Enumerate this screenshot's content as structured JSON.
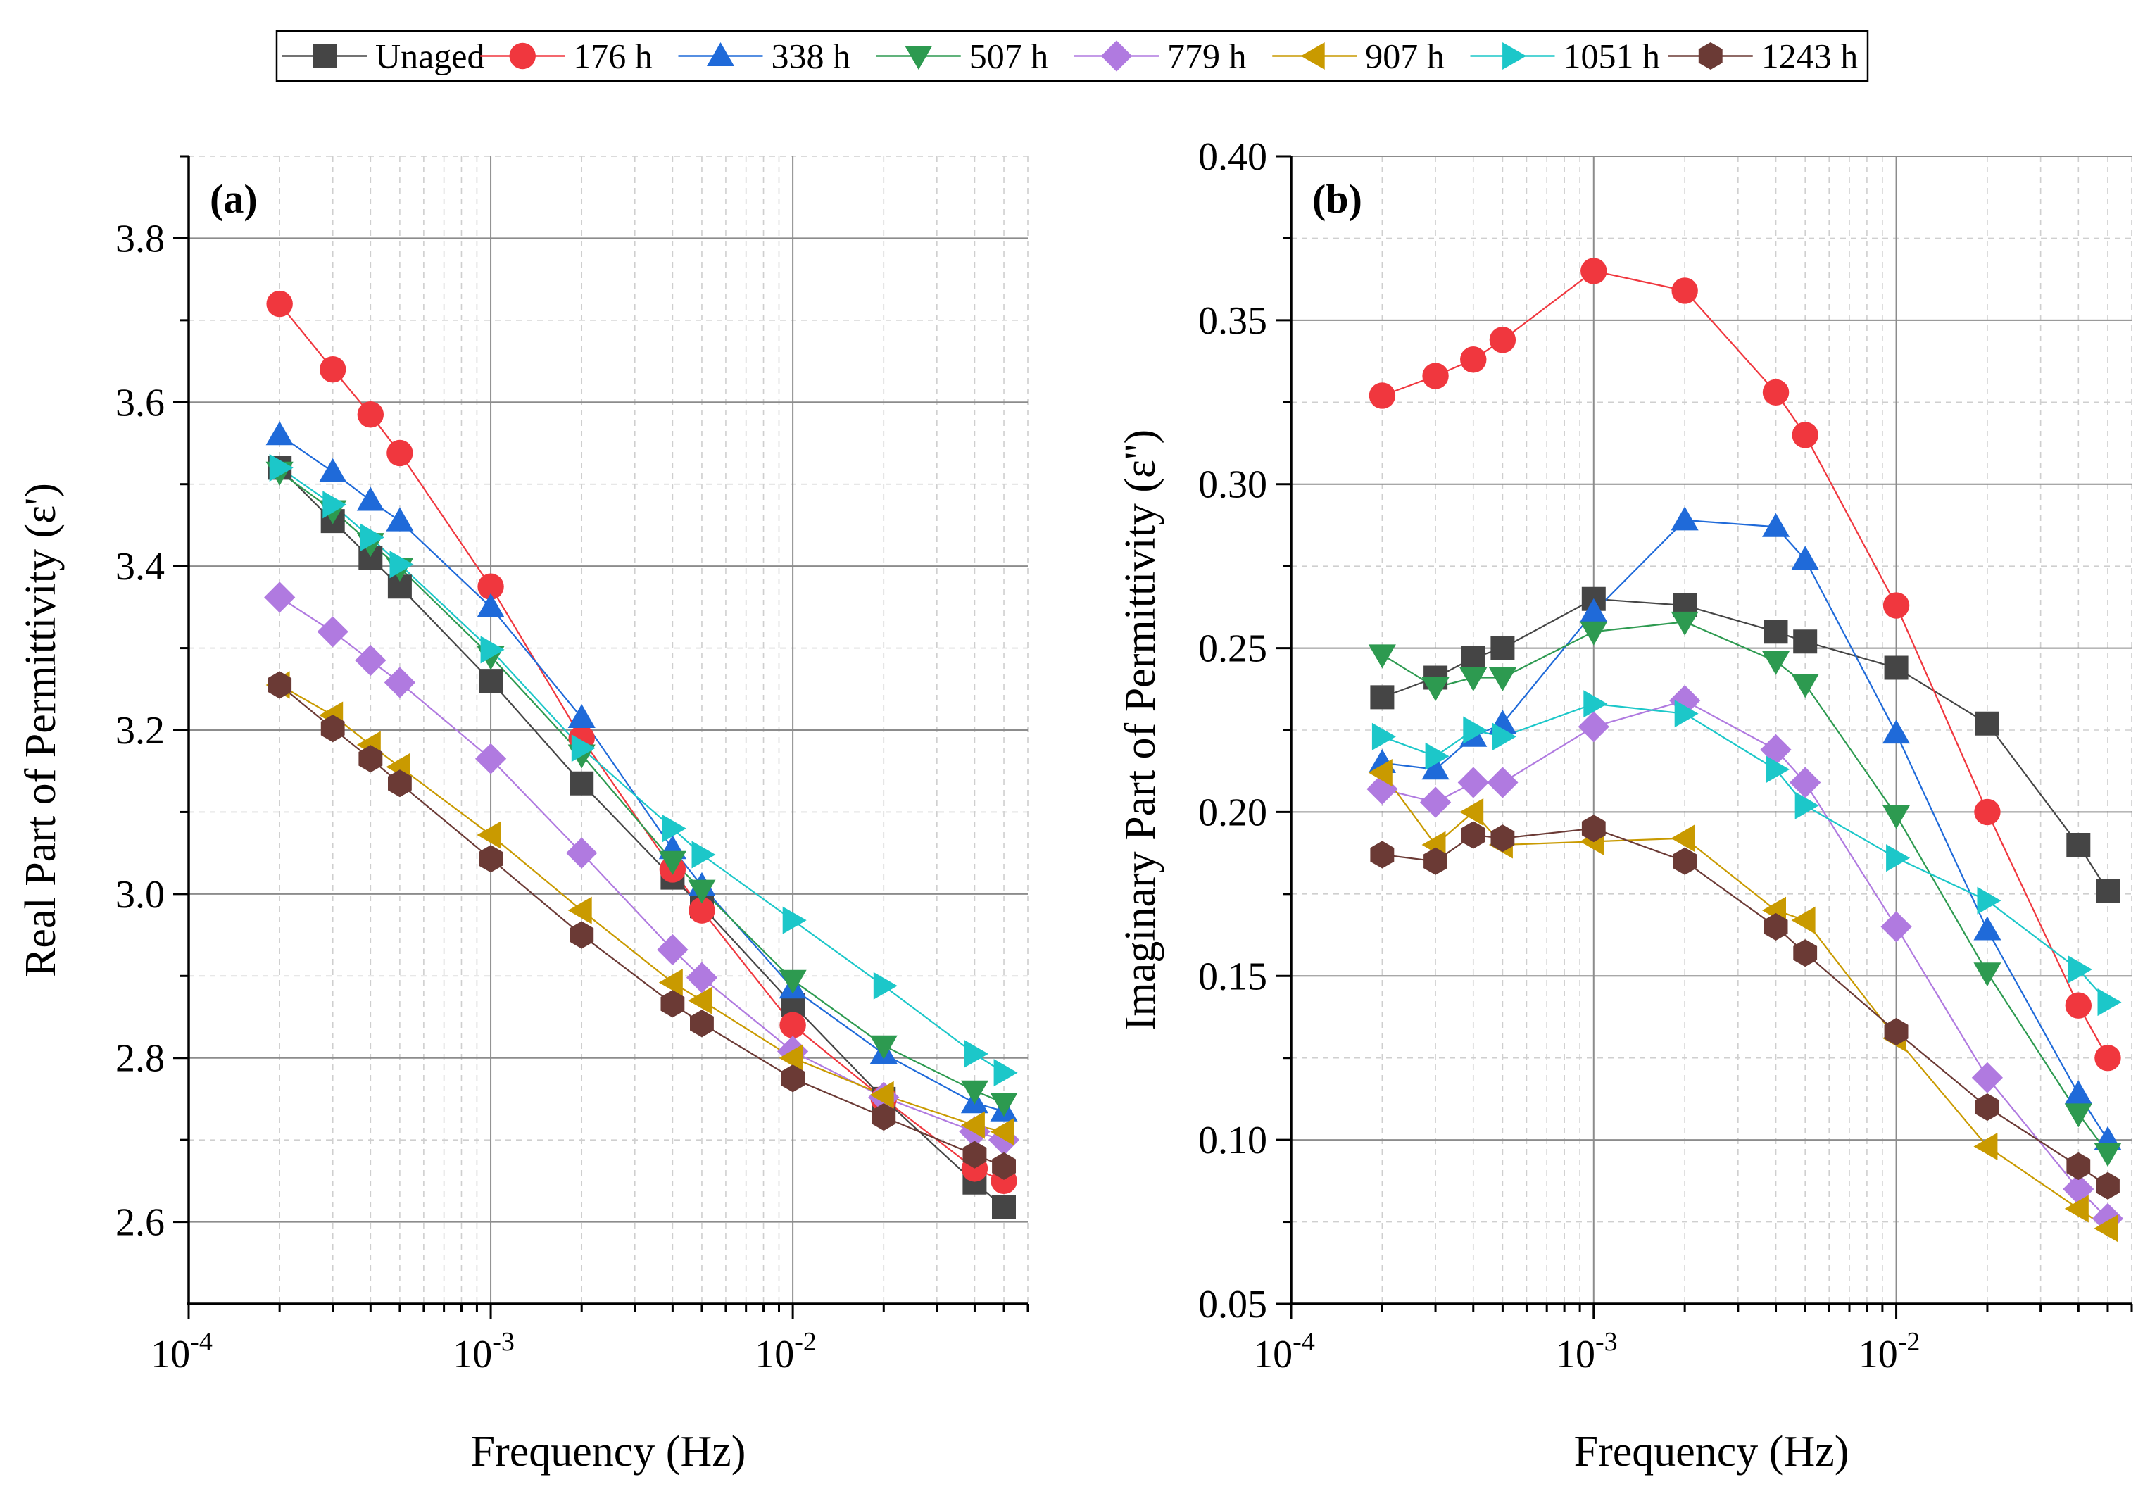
{
  "chart_data": [
    {
      "type": "line",
      "id": "a",
      "panel_label": "(a)",
      "xlabel": "Frequency (Hz)",
      "ylabel": "Real Part of Permittivity (ε')",
      "xscale": "log",
      "xlim": [
        0.0001,
        0.06
      ],
      "ylim": [
        2.5,
        3.9
      ],
      "yticks": [
        2.6,
        2.8,
        3.0,
        3.2,
        3.4,
        3.6,
        3.8
      ],
      "ytick_labels": [
        "2.6",
        "2.8",
        "3.0",
        "3.2",
        "3.4",
        "3.6",
        "3.8"
      ],
      "grid": true,
      "x": [
        0.0002,
        0.0003,
        0.0004,
        0.0005,
        0.001,
        0.002,
        0.004,
        0.005,
        0.01,
        0.02,
        0.04,
        0.05
      ],
      "series": [
        {
          "name": "Unaged",
          "values": [
            3.52,
            3.455,
            3.41,
            3.375,
            3.26,
            3.135,
            3.02,
            2.985,
            2.865,
            2.75,
            2.648,
            2.618
          ]
        },
        {
          "name": "176 h",
          "values": [
            3.72,
            3.64,
            3.585,
            3.538,
            3.375,
            3.19,
            3.03,
            2.98,
            2.84,
            2.75,
            2.665,
            2.65
          ]
        },
        {
          "name": "338 h",
          "values": [
            3.56,
            3.515,
            3.48,
            3.455,
            3.35,
            3.215,
            3.055,
            3.01,
            2.885,
            2.805,
            2.745,
            2.735
          ]
        },
        {
          "name": "507 h",
          "values": [
            3.515,
            3.468,
            3.428,
            3.398,
            3.29,
            3.17,
            3.04,
            3.005,
            2.895,
            2.815,
            2.76,
            2.745
          ]
        },
        {
          "name": "779 h",
          "values": [
            3.362,
            3.32,
            3.285,
            3.258,
            3.165,
            3.05,
            2.932,
            2.898,
            2.808,
            2.752,
            2.71,
            2.7
          ]
        },
        {
          "name": "907 h",
          "values": [
            3.255,
            3.218,
            3.182,
            3.155,
            3.072,
            2.98,
            2.892,
            2.87,
            2.8,
            2.755,
            2.718,
            2.71
          ]
        },
        {
          "name": "1051 h",
          "values": [
            3.52,
            3.475,
            3.435,
            3.402,
            3.298,
            3.178,
            3.08,
            3.048,
            2.968,
            2.888,
            2.805,
            2.782
          ]
        },
        {
          "name": "1243 h",
          "values": [
            3.255,
            3.202,
            3.165,
            3.135,
            3.043,
            2.95,
            2.866,
            2.842,
            2.775,
            2.728,
            2.682,
            2.668
          ]
        }
      ]
    },
    {
      "type": "line",
      "id": "b",
      "panel_label": "(b)",
      "xlabel": "Frequency (Hz)",
      "ylabel": "Imaginary Part of Permittivity (ε'')",
      "xscale": "log",
      "xlim": [
        0.0001,
        0.06
      ],
      "ylim": [
        0.05,
        0.4
      ],
      "yticks": [
        0.05,
        0.1,
        0.15,
        0.2,
        0.25,
        0.3,
        0.35,
        0.4
      ],
      "ytick_labels": [
        "0.05",
        "0.10",
        "0.15",
        "0.20",
        "0.25",
        "0.30",
        "0.35",
        "0.40"
      ],
      "grid": true,
      "x": [
        0.0002,
        0.0003,
        0.0004,
        0.0005,
        0.001,
        0.002,
        0.004,
        0.005,
        0.01,
        0.02,
        0.04,
        0.05
      ],
      "series": [
        {
          "name": "Unaged",
          "values": [
            0.235,
            0.241,
            0.247,
            0.25,
            0.265,
            0.263,
            0.255,
            0.252,
            0.244,
            0.227,
            0.19,
            0.176
          ]
        },
        {
          "name": "176 h",
          "values": [
            0.327,
            0.333,
            0.338,
            0.344,
            0.365,
            0.359,
            0.328,
            0.315,
            0.263,
            0.2,
            0.141,
            0.125
          ]
        },
        {
          "name": "338 h",
          "values": [
            0.215,
            0.213,
            0.223,
            0.227,
            0.261,
            0.289,
            0.287,
            0.277,
            0.224,
            0.164,
            0.114,
            0.1
          ]
        },
        {
          "name": "507 h",
          "values": [
            0.248,
            0.238,
            0.241,
            0.241,
            0.255,
            0.258,
            0.246,
            0.239,
            0.199,
            0.151,
            0.108,
            0.096
          ]
        },
        {
          "name": "779 h",
          "values": [
            0.207,
            0.203,
            0.209,
            0.209,
            0.226,
            0.234,
            0.219,
            0.209,
            0.165,
            0.119,
            0.085,
            0.076
          ]
        },
        {
          "name": "907 h",
          "values": [
            0.212,
            0.19,
            0.2,
            0.19,
            0.191,
            0.192,
            0.17,
            0.167,
            0.131,
            0.098,
            0.079,
            0.073
          ]
        },
        {
          "name": "1051 h",
          "values": [
            0.223,
            0.217,
            0.225,
            0.223,
            0.233,
            0.23,
            0.213,
            0.202,
            0.186,
            0.173,
            0.152,
            0.142
          ]
        },
        {
          "name": "1243 h",
          "values": [
            0.187,
            0.185,
            0.193,
            0.192,
            0.195,
            0.185,
            0.165,
            0.157,
            0.133,
            0.11,
            0.092,
            0.086
          ]
        }
      ]
    }
  ],
  "xtick_labels": [
    {
      "base": "10",
      "exp": "-4"
    },
    {
      "base": "10",
      "exp": "-3"
    },
    {
      "base": "10",
      "exp": "-2"
    }
  ],
  "legend": {
    "placement": "top-center",
    "entries": [
      {
        "name": "Unaged",
        "label": "Unaged",
        "color": "#454545",
        "marker": "square"
      },
      {
        "name": "176 h",
        "label": "176 h",
        "color": "#f0373e",
        "marker": "circle"
      },
      {
        "name": "338 h",
        "label": "338 h",
        "color": "#1f6ad9",
        "marker": "triangle-up"
      },
      {
        "name": "507 h",
        "label": "507 h",
        "color": "#2d9a50",
        "marker": "triangle-down"
      },
      {
        "name": "779 h",
        "label": "779 h",
        "color": "#b07ae0",
        "marker": "diamond"
      },
      {
        "name": "907 h",
        "label": "907 h",
        "color": "#c99a00",
        "marker": "triangle-left"
      },
      {
        "name": "1051 h",
        "label": "1051 h",
        "color": "#1cc7c9",
        "marker": "triangle-right"
      },
      {
        "name": "1243 h",
        "label": "1243 h",
        "color": "#6b3a35",
        "marker": "hexagon"
      }
    ]
  }
}
